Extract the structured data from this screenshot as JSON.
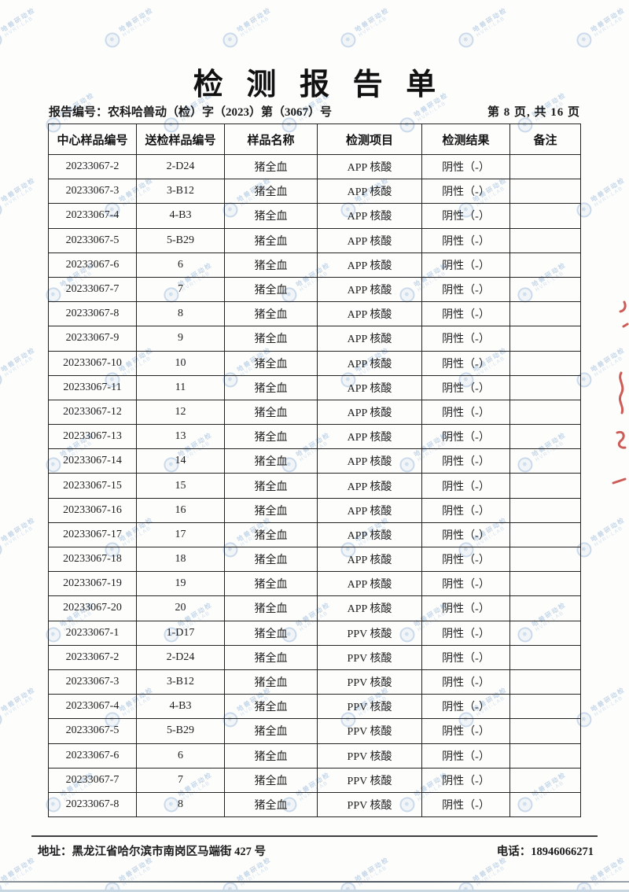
{
  "doc": {
    "title": "检测报告单",
    "report_no": "报告编号：农科哈兽动（检）字（2023）第（3067）号",
    "page_info": "第 8 页, 共 16 页"
  },
  "table": {
    "headers": [
      "中心样品编号",
      "送检样品编号",
      "样品名称",
      "检测项目",
      "检测结果",
      "备注"
    ],
    "rows": [
      [
        "20233067-2",
        "2-D24",
        "猪全血",
        "APP 核酸",
        "阴性（-）",
        ""
      ],
      [
        "20233067-3",
        "3-B12",
        "猪全血",
        "APP 核酸",
        "阴性（-）",
        ""
      ],
      [
        "20233067-4",
        "4-B3",
        "猪全血",
        "APP 核酸",
        "阴性（-）",
        ""
      ],
      [
        "20233067-5",
        "5-B29",
        "猪全血",
        "APP 核酸",
        "阴性（-）",
        ""
      ],
      [
        "20233067-6",
        "6",
        "猪全血",
        "APP 核酸",
        "阴性（-）",
        ""
      ],
      [
        "20233067-7",
        "7",
        "猪全血",
        "APP 核酸",
        "阴性（-）",
        ""
      ],
      [
        "20233067-8",
        "8",
        "猪全血",
        "APP 核酸",
        "阴性（-）",
        ""
      ],
      [
        "20233067-9",
        "9",
        "猪全血",
        "APP 核酸",
        "阴性（-）",
        ""
      ],
      [
        "20233067-10",
        "10",
        "猪全血",
        "APP 核酸",
        "阴性（-）",
        ""
      ],
      [
        "20233067-11",
        "11",
        "猪全血",
        "APP 核酸",
        "阴性（-）",
        ""
      ],
      [
        "20233067-12",
        "12",
        "猪全血",
        "APP 核酸",
        "阴性（-）",
        ""
      ],
      [
        "20233067-13",
        "13",
        "猪全血",
        "APP 核酸",
        "阴性（-）",
        ""
      ],
      [
        "20233067-14",
        "14",
        "猪全血",
        "APP 核酸",
        "阴性（-）",
        ""
      ],
      [
        "20233067-15",
        "15",
        "猪全血",
        "APP 核酸",
        "阴性（-）",
        ""
      ],
      [
        "20233067-16",
        "16",
        "猪全血",
        "APP 核酸",
        "阴性（-）",
        ""
      ],
      [
        "20233067-17",
        "17",
        "猪全血",
        "APP 核酸",
        "阴性（-）",
        ""
      ],
      [
        "20233067-18",
        "18",
        "猪全血",
        "APP 核酸",
        "阴性（-）",
        ""
      ],
      [
        "20233067-19",
        "19",
        "猪全血",
        "APP 核酸",
        "阴性（-）",
        ""
      ],
      [
        "20233067-20",
        "20",
        "猪全血",
        "APP 核酸",
        "阴性（-）",
        ""
      ],
      [
        "20233067-1",
        "1-D17",
        "猪全血",
        "PPV 核酸",
        "阴性（-）",
        ""
      ],
      [
        "20233067-2",
        "2-D24",
        "猪全血",
        "PPV 核酸",
        "阴性（-）",
        ""
      ],
      [
        "20233067-3",
        "3-B12",
        "猪全血",
        "PPV 核酸",
        "阴性（-）",
        ""
      ],
      [
        "20233067-4",
        "4-B3",
        "猪全血",
        "PPV 核酸",
        "阴性（-）",
        ""
      ],
      [
        "20233067-5",
        "5-B29",
        "猪全血",
        "PPV 核酸",
        "阴性（-）",
        ""
      ],
      [
        "20233067-6",
        "6",
        "猪全血",
        "PPV 核酸",
        "阴性（-）",
        ""
      ],
      [
        "20233067-7",
        "7",
        "猪全血",
        "PPV 核酸",
        "阴性（-）",
        ""
      ],
      [
        "20233067-8",
        "8",
        "猪全血",
        "PPV 核酸",
        "阴性（-）",
        ""
      ]
    ]
  },
  "footer": {
    "address": "地址：黑龙江省哈尔滨市南岗区马端街 427 号",
    "phone": "电话：18946066271"
  },
  "watermark": {
    "line1": "哈兽研动检",
    "line2": "HVRI-LAB",
    "color": "#7aa3ce"
  },
  "stamp": {
    "color": "#c4403c"
  }
}
